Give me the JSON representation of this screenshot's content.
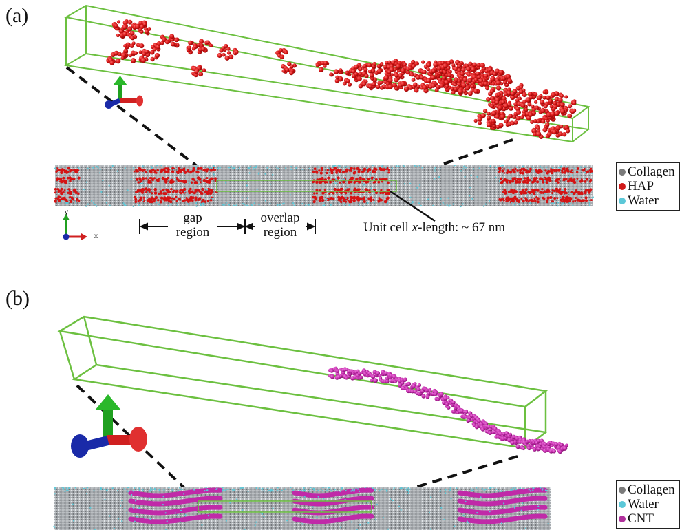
{
  "panels": [
    {
      "label": "(a)",
      "legend": [
        {
          "label": "Collagen",
          "color": "#7a7a7a"
        },
        {
          "label": "HAP",
          "color": "#d01818"
        },
        {
          "label": "Water",
          "color": "#5cc8d8"
        }
      ],
      "annotations": {
        "gap_line1": "gap",
        "gap_line2": "region",
        "overlap_line1": "overlap",
        "overlap_line2": "region",
        "unit_cell_prefix": "Unit cell ",
        "unit_cell_italic": "x",
        "unit_cell_suffix": "-length: ~ 67 nm"
      },
      "axis_labels": {
        "y": "y",
        "x": "x"
      }
    },
    {
      "label": "(b)",
      "legend": [
        {
          "label": "Collagen",
          "color": "#7a7a7a"
        },
        {
          "label": "Water",
          "color": "#5cc8d8"
        },
        {
          "label": "CNT",
          "color": "#b0309c"
        }
      ]
    }
  ],
  "colors": {
    "box_outline": "#6cc040",
    "collagen": "#b8bcc0",
    "hap": "#d41414",
    "water": "#5cc8d8",
    "cnt": "#c02aa8",
    "axis_x": "#d02020",
    "axis_y": "#20a020",
    "axis_z": "#1a2aa8"
  }
}
